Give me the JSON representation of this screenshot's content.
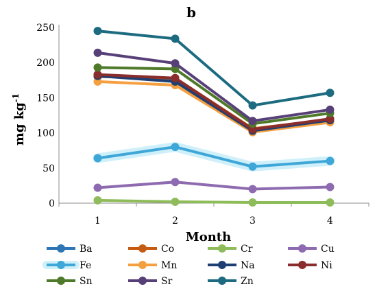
{
  "chart_data": {
    "type": "line",
    "title": "b",
    "xlabel": "Month",
    "ylabel": "mg kg",
    "ylabel_sup": "-1",
    "categories": [
      "1",
      "2",
      "3",
      "4"
    ],
    "ylim": [
      0,
      250
    ],
    "yticks": [
      "0",
      "50",
      "100",
      "150",
      "200",
      "250"
    ],
    "grid": false,
    "legend_position": "bottom",
    "series": [
      {
        "name": "Ba",
        "color": "#2e75b6",
        "values": [
          182,
          174,
          104,
          119
        ]
      },
      {
        "name": "Co",
        "color": "#c55a11",
        "values": [
          180,
          178,
          106,
          119
        ]
      },
      {
        "name": "Cr",
        "color": "#8fbc5a",
        "values": [
          4,
          2,
          1,
          1
        ]
      },
      {
        "name": "Cu",
        "color": "#8e6bb0",
        "values": [
          22,
          30,
          20,
          23
        ]
      },
      {
        "name": "Fe",
        "color": "#3ea7d8",
        "values": [
          64,
          80,
          52,
          60
        ]
      },
      {
        "name": "Mn",
        "color": "#f4a040",
        "values": [
          173,
          168,
          101,
          115
        ]
      },
      {
        "name": "Na",
        "color": "#1f3f73",
        "values": [
          181,
          173,
          103,
          118
        ]
      },
      {
        "name": "Ni",
        "color": "#8a2d2d",
        "values": [
          183,
          178,
          105,
          120
        ]
      },
      {
        "name": "Sn",
        "color": "#4e7a2a",
        "values": [
          193,
          191,
          113,
          128
        ]
      },
      {
        "name": "Sr",
        "color": "#573f78",
        "values": [
          214,
          199,
          117,
          133
        ]
      },
      {
        "name": "Zn",
        "color": "#1d6b80",
        "values": [
          245,
          234,
          139,
          157
        ]
      }
    ]
  }
}
